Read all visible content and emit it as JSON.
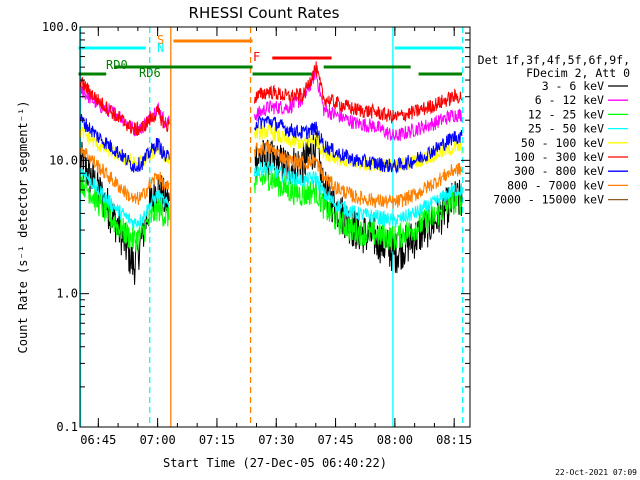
{
  "chart_data": {
    "type": "line",
    "title": "RHESSI Count Rates",
    "xlabel": "Start Time (27-Dec-05 06:40:22)",
    "ylabel": "Count Rate (s⁻¹ detector segment⁻¹)",
    "yscale": "log",
    "ylim": [
      0.1,
      100.0
    ],
    "y_ticks": [
      0.1,
      1.0,
      10.0,
      100.0
    ],
    "y_tick_labels": [
      "0.1",
      "1.0",
      "10.0",
      "100.0"
    ],
    "xlim": [
      "06:40:22",
      "08:19:00"
    ],
    "x_ticks": [
      "06:45",
      "07:00",
      "07:15",
      "07:30",
      "07:45",
      "08:00",
      "08:15"
    ],
    "grid": false,
    "legend_position": "right",
    "legend_header": [
      "Det 1f,3f,4f,5f,6f,9f,",
      "FDecim 2, Att 0"
    ],
    "date_stamp": "22-Oct-2021 07:09",
    "series": [
      {
        "name": "3 - 6 keV",
        "color": "#000000",
        "x": [
          "06:40",
          "06:45",
          "06:50",
          "06:54",
          "06:56",
          "06:58",
          "07:00",
          "07:02",
          "07:05",
          "07:25",
          "07:28",
          "07:33",
          "07:37",
          "07:40",
          "07:42",
          "07:45",
          "07:50",
          "07:55",
          "08:00",
          "08:05",
          "08:10",
          "08:15"
        ],
        "values": [
          10.5,
          6.0,
          3.2,
          1.6,
          2.6,
          4.5,
          6.5,
          4.8,
          5.0,
          10.5,
          10.0,
          9.0,
          9.5,
          13.0,
          6.0,
          4.5,
          3.0,
          2.6,
          2.0,
          2.6,
          3.5,
          5.0
        ]
      },
      {
        "name": "6 - 12 keV",
        "color": "#ff00ff",
        "x": [
          "06:40",
          "06:45",
          "06:50",
          "06:54",
          "06:56",
          "06:58",
          "07:00",
          "07:02",
          "07:05",
          "07:25",
          "07:28",
          "07:33",
          "07:37",
          "07:40",
          "07:42",
          "07:45",
          "07:50",
          "07:55",
          "08:00",
          "08:05",
          "08:10",
          "08:15"
        ],
        "values": [
          35.0,
          26.0,
          22.0,
          17.0,
          17.5,
          21.0,
          25.0,
          19.0,
          20.0,
          22.0,
          25.0,
          25.0,
          29.0,
          46.0,
          24.0,
          22.0,
          19.0,
          18.0,
          15.0,
          17.0,
          19.0,
          22.0
        ]
      },
      {
        "name": "12 - 25 keV",
        "color": "#00ff00",
        "x": [
          "06:40",
          "06:45",
          "06:50",
          "06:54",
          "06:56",
          "06:58",
          "07:00",
          "07:02",
          "07:05",
          "07:25",
          "07:28",
          "07:33",
          "07:37",
          "07:40",
          "07:42",
          "07:45",
          "07:50",
          "07:55",
          "08:00",
          "08:05",
          "08:10",
          "08:15"
        ],
        "values": [
          7.5,
          4.8,
          3.2,
          2.5,
          2.8,
          3.6,
          4.4,
          3.8,
          4.0,
          7.0,
          7.5,
          6.0,
          5.5,
          6.0,
          4.5,
          3.6,
          2.9,
          2.8,
          2.6,
          3.1,
          3.8,
          4.9
        ]
      },
      {
        "name": "25 - 50 keV",
        "color": "#00ffff",
        "x": [
          "06:40",
          "06:45",
          "06:50",
          "06:54",
          "06:56",
          "06:58",
          "07:00",
          "07:02",
          "07:05",
          "07:25",
          "07:28",
          "07:33",
          "07:37",
          "07:40",
          "07:42",
          "07:45",
          "07:50",
          "07:55",
          "08:00",
          "08:05",
          "08:10",
          "08:15"
        ],
        "values": [
          9.0,
          6.0,
          4.2,
          3.4,
          3.6,
          4.6,
          5.5,
          4.7,
          4.8,
          8.5,
          8.8,
          7.5,
          7.0,
          7.5,
          5.6,
          4.7,
          4.0,
          3.8,
          3.5,
          4.0,
          4.8,
          6.0
        ]
      },
      {
        "name": "50 - 100 keV",
        "color": "#ffff00",
        "x": [
          "06:40",
          "06:45",
          "06:50",
          "06:54",
          "06:56",
          "06:58",
          "07:00",
          "07:02",
          "07:05",
          "07:25",
          "07:28",
          "07:33",
          "07:37",
          "07:40",
          "07:42",
          "07:45",
          "07:50",
          "07:55",
          "08:00",
          "08:05",
          "08:10",
          "08:15"
        ],
        "values": [
          17.0,
          13.0,
          11.0,
          9.5,
          9.8,
          11.0,
          12.5,
          10.5,
          10.8,
          16.0,
          16.5,
          14.0,
          13.5,
          14.5,
          11.5,
          10.5,
          9.5,
          9.2,
          9.0,
          9.8,
          11.0,
          12.5
        ]
      },
      {
        "name": "100 - 300 keV",
        "color": "#ff0000",
        "x": [
          "06:40",
          "06:45",
          "06:50",
          "06:54",
          "06:56",
          "06:58",
          "07:00",
          "07:02",
          "07:05",
          "07:25",
          "07:28",
          "07:33",
          "07:37",
          "07:40",
          "07:42",
          "07:45",
          "07:50",
          "07:55",
          "08:00",
          "08:05",
          "08:10",
          "08:15"
        ],
        "values": [
          40.0,
          28.0,
          21.0,
          17.0,
          17.5,
          20.0,
          23.0,
          18.0,
          19.0,
          30.0,
          33.0,
          30.0,
          31.0,
          50.0,
          29.0,
          27.0,
          24.0,
          23.0,
          21.0,
          23.0,
          26.0,
          30.0
        ]
      },
      {
        "name": "300 - 800 keV",
        "color": "#0000ff",
        "x": [
          "06:40",
          "06:45",
          "06:50",
          "06:54",
          "06:56",
          "06:58",
          "07:00",
          "07:02",
          "07:05",
          "07:25",
          "07:28",
          "07:33",
          "07:37",
          "07:40",
          "07:42",
          "07:45",
          "07:50",
          "07:55",
          "08:00",
          "08:05",
          "08:10",
          "08:15"
        ],
        "values": [
          21.0,
          15.0,
          11.5,
          9.0,
          9.5,
          11.5,
          13.5,
          10.5,
          11.0,
          19.0,
          20.0,
          17.0,
          16.0,
          17.5,
          13.0,
          11.5,
          10.0,
          9.5,
          9.0,
          10.0,
          12.0,
          15.0
        ]
      },
      {
        "name": "800 - 7000 keV",
        "color": "#ff8000",
        "x": [
          "06:40",
          "06:45",
          "06:50",
          "06:54",
          "06:56",
          "06:58",
          "07:00",
          "07:02",
          "07:05",
          "07:25",
          "07:28",
          "07:33",
          "07:37",
          "07:40",
          "07:42",
          "07:45",
          "07:50",
          "07:55",
          "08:00",
          "08:05",
          "08:10",
          "08:15"
        ],
        "values": [
          13.0,
          9.0,
          6.5,
          5.0,
          5.3,
          6.5,
          7.8,
          6.2,
          6.4,
          12.0,
          12.5,
          10.0,
          9.5,
          10.0,
          7.5,
          6.3,
          5.3,
          5.0,
          4.8,
          5.5,
          6.8,
          8.5
        ]
      },
      {
        "name": "7000 - 15000 keV",
        "color": "#8b5a2b",
        "x": [],
        "values": []
      }
    ],
    "annotations": {
      "attenuator_labels": [
        {
          "text": "S",
          "color": "#ff8000"
        },
        {
          "text": "N",
          "color": "#00ffff"
        }
      ],
      "flare_label": {
        "text": "F",
        "color": "#ff0000"
      },
      "radiation_labels": [
        {
          "text": "RD0",
          "color": "#008000"
        },
        {
          "text": "RD6",
          "color": "#008000"
        }
      ],
      "night_intervals": [
        [
          "06:40",
          "06:57"
        ],
        [
          "08:00",
          "08:17"
        ]
      ],
      "saa_intervals": [
        [
          "07:04",
          "07:24"
        ]
      ],
      "flare_intervals": [
        [
          "07:29",
          "07:44"
        ]
      ],
      "rd0_intervals": [
        [
          "06:49",
          "07:24"
        ],
        [
          "07:42",
          "08:04"
        ]
      ],
      "rd6_intervals": [
        [
          "06:40",
          "06:47"
        ],
        [
          "07:24",
          "07:39"
        ],
        [
          "08:06",
          "08:17"
        ]
      ],
      "vlines": [
        {
          "time": "06:40:30",
          "color": "#00ffff",
          "style": "solid"
        },
        {
          "time": "06:58:00",
          "color": "#00ffff",
          "style": "dashed"
        },
        {
          "time": "07:03:20",
          "color": "#ff8000",
          "style": "solid"
        },
        {
          "time": "07:23:30",
          "color": "#ff8000",
          "style": "dashed"
        },
        {
          "time": "07:59:30",
          "color": "#00ffff",
          "style": "solid"
        },
        {
          "time": "08:17:10",
          "color": "#00ffff",
          "style": "dashed"
        }
      ]
    }
  }
}
